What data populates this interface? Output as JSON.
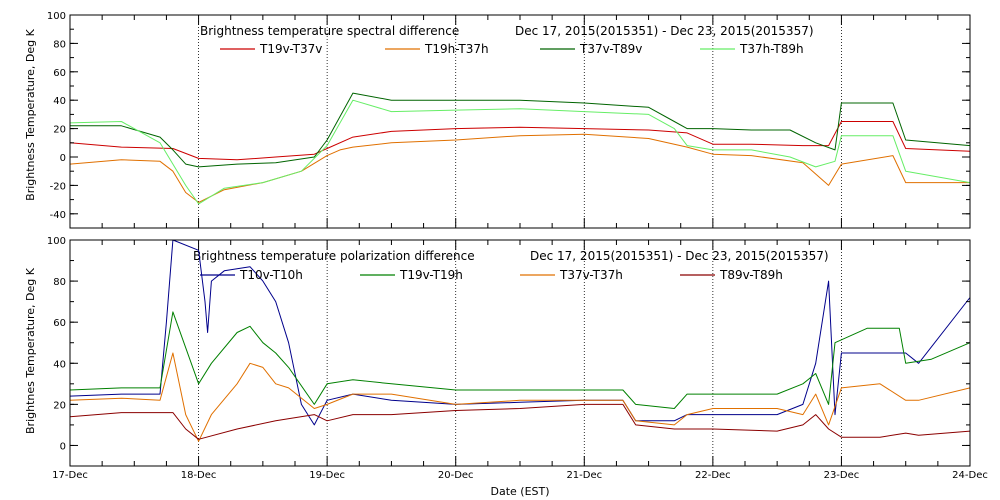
{
  "chart_data": [
    {
      "type": "line",
      "title": "Brightness temperature spectral difference",
      "date_range": "Dec 17, 2015(2015351) - Dec 23, 2015(2015357)",
      "ylabel": "Brightness Temperature, Deg K",
      "xlabel": "",
      "xlim": [
        0,
        7
      ],
      "ylim": [
        -50,
        100
      ],
      "yticks": [
        -40,
        -20,
        0,
        20,
        40,
        60,
        80,
        100
      ],
      "ytick_labels": [
        "-40",
        "-20",
        "0",
        "20",
        "40",
        "60",
        "80",
        "100"
      ],
      "grid": "vertical dotted at day boundaries",
      "legend": "top, two rows",
      "series": [
        {
          "name": "T19v-T37v",
          "color": "#cc0000",
          "points": [
            [
              0,
              10
            ],
            [
              0.4,
              7
            ],
            [
              0.8,
              6
            ],
            [
              1.0,
              -1
            ],
            [
              1.3,
              -2
            ],
            [
              1.6,
              0
            ],
            [
              1.9,
              2
            ],
            [
              2.0,
              6
            ],
            [
              2.2,
              14
            ],
            [
              2.5,
              18
            ],
            [
              3.0,
              20
            ],
            [
              3.5,
              21
            ],
            [
              4.0,
              20
            ],
            [
              4.5,
              19
            ],
            [
              4.8,
              17
            ],
            [
              5.0,
              9
            ],
            [
              5.3,
              9
            ],
            [
              5.7,
              8
            ],
            [
              5.9,
              8
            ],
            [
              6.0,
              25
            ],
            [
              6.4,
              25
            ],
            [
              6.5,
              6
            ],
            [
              7.0,
              4
            ]
          ]
        },
        {
          "name": "T19h-T37h",
          "color": "#e07000",
          "points": [
            [
              0,
              -5
            ],
            [
              0.4,
              -2
            ],
            [
              0.7,
              -3
            ],
            [
              0.8,
              -10
            ],
            [
              0.9,
              -25
            ],
            [
              1.0,
              -32
            ],
            [
              1.2,
              -23
            ],
            [
              1.5,
              -18
            ],
            [
              1.8,
              -10
            ],
            [
              2.0,
              1
            ],
            [
              2.1,
              5
            ],
            [
              2.2,
              7
            ],
            [
              2.5,
              10
            ],
            [
              3.0,
              12
            ],
            [
              3.5,
              15
            ],
            [
              4.0,
              16
            ],
            [
              4.5,
              13
            ],
            [
              4.8,
              7
            ],
            [
              5.0,
              2
            ],
            [
              5.3,
              1
            ],
            [
              5.7,
              -4
            ],
            [
              5.9,
              -20
            ],
            [
              6.0,
              -5
            ],
            [
              6.4,
              1
            ],
            [
              6.5,
              -18
            ],
            [
              7.0,
              -18
            ]
          ]
        },
        {
          "name": "T37v-T89v",
          "color": "#006400",
          "points": [
            [
              0,
              22
            ],
            [
              0.4,
              22
            ],
            [
              0.7,
              14
            ],
            [
              0.8,
              5
            ],
            [
              0.9,
              -5
            ],
            [
              1.0,
              -7
            ],
            [
              1.3,
              -5
            ],
            [
              1.6,
              -4
            ],
            [
              1.9,
              0
            ],
            [
              2.0,
              12
            ],
            [
              2.2,
              45
            ],
            [
              2.5,
              40
            ],
            [
              3.0,
              40
            ],
            [
              3.5,
              40
            ],
            [
              4.0,
              38
            ],
            [
              4.5,
              35
            ],
            [
              4.7,
              25
            ],
            [
              4.8,
              20
            ],
            [
              5.0,
              20
            ],
            [
              5.3,
              19
            ],
            [
              5.6,
              19
            ],
            [
              5.8,
              10
            ],
            [
              5.95,
              5
            ],
            [
              6.0,
              38
            ],
            [
              6.4,
              38
            ],
            [
              6.5,
              12
            ],
            [
              7.0,
              8
            ]
          ]
        },
        {
          "name": "T37h-T89h",
          "color": "#66ee66",
          "points": [
            [
              0,
              24
            ],
            [
              0.4,
              25
            ],
            [
              0.7,
              10
            ],
            [
              0.8,
              -5
            ],
            [
              0.9,
              -20
            ],
            [
              1.0,
              -33
            ],
            [
              1.2,
              -22
            ],
            [
              1.5,
              -18
            ],
            [
              1.8,
              -10
            ],
            [
              2.0,
              8
            ],
            [
              2.2,
              40
            ],
            [
              2.5,
              32
            ],
            [
              3.0,
              33
            ],
            [
              3.5,
              34
            ],
            [
              4.0,
              32
            ],
            [
              4.5,
              30
            ],
            [
              4.7,
              20
            ],
            [
              4.8,
              8
            ],
            [
              5.0,
              5
            ],
            [
              5.3,
              5
            ],
            [
              5.6,
              0
            ],
            [
              5.8,
              -7
            ],
            [
              5.95,
              -3
            ],
            [
              6.0,
              15
            ],
            [
              6.4,
              15
            ],
            [
              6.5,
              -10
            ],
            [
              7.0,
              -18
            ]
          ]
        }
      ]
    },
    {
      "type": "line",
      "title": "Brightness temperature polarization difference",
      "date_range": "Dec 17, 2015(2015351) - Dec 23, 2015(2015357)",
      "ylabel": "Brightnes Temperature, Deg K",
      "xlabel": "Date (EST)",
      "xlim": [
        0,
        7
      ],
      "ylim": [
        -10,
        100
      ],
      "yticks": [
        0,
        20,
        40,
        60,
        80,
        100
      ],
      "ytick_labels": [
        "0",
        "20",
        "40",
        "60",
        "80",
        "100"
      ],
      "x_tick_labels": [
        "17-Dec",
        "18-Dec",
        "19-Dec",
        "20-Dec",
        "21-Dec",
        "22-Dec",
        "23-Dec",
        "24-Dec"
      ],
      "grid": "vertical dotted at day boundaries",
      "legend": "top, single row",
      "series": [
        {
          "name": "T10v-T10h",
          "color": "#00008b",
          "points": [
            [
              0,
              24
            ],
            [
              0.4,
              25
            ],
            [
              0.7,
              25
            ],
            [
              0.75,
              60
            ],
            [
              0.8,
              100
            ],
            [
              1.0,
              95
            ],
            [
              1.05,
              70
            ],
            [
              1.07,
              55
            ],
            [
              1.1,
              80
            ],
            [
              1.2,
              85
            ],
            [
              1.4,
              87
            ],
            [
              1.5,
              80
            ],
            [
              1.6,
              70
            ],
            [
              1.7,
              50
            ],
            [
              1.8,
              20
            ],
            [
              1.9,
              10
            ],
            [
              2.0,
              22
            ],
            [
              2.2,
              25
            ],
            [
              2.5,
              22
            ],
            [
              3.0,
              20
            ],
            [
              3.5,
              21
            ],
            [
              4.0,
              22
            ],
            [
              4.3,
              22
            ],
            [
              4.4,
              12
            ],
            [
              4.7,
              12
            ],
            [
              4.8,
              15
            ],
            [
              5.0,
              15
            ],
            [
              5.5,
              15
            ],
            [
              5.7,
              20
            ],
            [
              5.8,
              40
            ],
            [
              5.9,
              80
            ],
            [
              5.95,
              15
            ],
            [
              6.0,
              45
            ],
            [
              6.5,
              45
            ],
            [
              6.6,
              40
            ],
            [
              7.0,
              72
            ]
          ]
        },
        {
          "name": "T19v-T19h",
          "color": "#008000",
          "points": [
            [
              0,
              27
            ],
            [
              0.4,
              28
            ],
            [
              0.7,
              28
            ],
            [
              0.8,
              65
            ],
            [
              1.0,
              30
            ],
            [
              1.1,
              40
            ],
            [
              1.3,
              55
            ],
            [
              1.4,
              58
            ],
            [
              1.5,
              50
            ],
            [
              1.6,
              45
            ],
            [
              1.7,
              38
            ],
            [
              1.9,
              20
            ],
            [
              2.0,
              30
            ],
            [
              2.2,
              32
            ],
            [
              2.5,
              30
            ],
            [
              3.0,
              27
            ],
            [
              3.5,
              27
            ],
            [
              4.0,
              27
            ],
            [
              4.3,
              27
            ],
            [
              4.4,
              20
            ],
            [
              4.7,
              18
            ],
            [
              4.8,
              25
            ],
            [
              5.0,
              25
            ],
            [
              5.5,
              25
            ],
            [
              5.7,
              30
            ],
            [
              5.8,
              35
            ],
            [
              5.9,
              20
            ],
            [
              5.95,
              50
            ],
            [
              6.2,
              57
            ],
            [
              6.45,
              57
            ],
            [
              6.5,
              40
            ],
            [
              6.7,
              42
            ],
            [
              7.0,
              50
            ]
          ]
        },
        {
          "name": "T37v-T37h",
          "color": "#e07000",
          "points": [
            [
              0,
              22
            ],
            [
              0.4,
              23
            ],
            [
              0.7,
              22
            ],
            [
              0.8,
              45
            ],
            [
              0.9,
              15
            ],
            [
              1.0,
              2
            ],
            [
              1.1,
              15
            ],
            [
              1.3,
              30
            ],
            [
              1.4,
              40
            ],
            [
              1.5,
              38
            ],
            [
              1.6,
              30
            ],
            [
              1.7,
              28
            ],
            [
              1.9,
              18
            ],
            [
              2.0,
              20
            ],
            [
              2.2,
              25
            ],
            [
              2.5,
              25
            ],
            [
              3.0,
              20
            ],
            [
              3.5,
              22
            ],
            [
              4.0,
              22
            ],
            [
              4.3,
              22
            ],
            [
              4.4,
              12
            ],
            [
              4.7,
              10
            ],
            [
              4.8,
              15
            ],
            [
              5.0,
              18
            ],
            [
              5.5,
              18
            ],
            [
              5.7,
              15
            ],
            [
              5.8,
              25
            ],
            [
              5.9,
              10
            ],
            [
              6.0,
              28
            ],
            [
              6.3,
              30
            ],
            [
              6.5,
              22
            ],
            [
              6.6,
              22
            ],
            [
              7.0,
              28
            ]
          ]
        },
        {
          "name": "T89v-T89h",
          "color": "#8b0000",
          "points": [
            [
              0,
              14
            ],
            [
              0.4,
              16
            ],
            [
              0.7,
              16
            ],
            [
              0.8,
              16
            ],
            [
              0.9,
              8
            ],
            [
              1.0,
              3
            ],
            [
              1.3,
              8
            ],
            [
              1.6,
              12
            ],
            [
              1.9,
              15
            ],
            [
              2.0,
              12
            ],
            [
              2.2,
              15
            ],
            [
              2.5,
              15
            ],
            [
              3.0,
              17
            ],
            [
              3.5,
              18
            ],
            [
              4.0,
              20
            ],
            [
              4.3,
              20
            ],
            [
              4.4,
              10
            ],
            [
              4.7,
              8
            ],
            [
              4.8,
              8
            ],
            [
              5.0,
              8
            ],
            [
              5.5,
              7
            ],
            [
              5.7,
              10
            ],
            [
              5.8,
              15
            ],
            [
              5.9,
              8
            ],
            [
              6.0,
              4
            ],
            [
              6.3,
              4
            ],
            [
              6.5,
              6
            ],
            [
              6.6,
              5
            ],
            [
              7.0,
              7
            ]
          ]
        }
      ]
    }
  ]
}
